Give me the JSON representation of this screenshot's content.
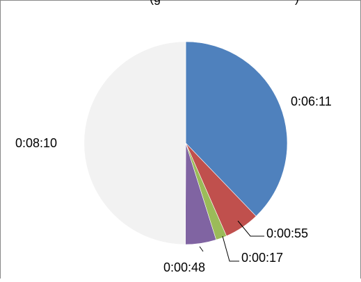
{
  "chart_data": {
    "type": "pie",
    "title": "",
    "title_partial_visible": "(g",
    "title_partial_visible_right": ")",
    "slices": [
      {
        "label": "0:06:11",
        "seconds": 371,
        "color": "#4F81BD"
      },
      {
        "label": "0:00:55",
        "seconds": 55,
        "color": "#C0504D"
      },
      {
        "label": "0:00:17",
        "seconds": 17,
        "color": "#9BBB59"
      },
      {
        "label": "0:00:48",
        "seconds": 48,
        "color": "#8064A2"
      },
      {
        "label": "0:08:10",
        "seconds": 490,
        "color": "#F2F2F2"
      }
    ],
    "legend": "none",
    "grid": false
  },
  "frame": {
    "border_color": "#888888"
  }
}
